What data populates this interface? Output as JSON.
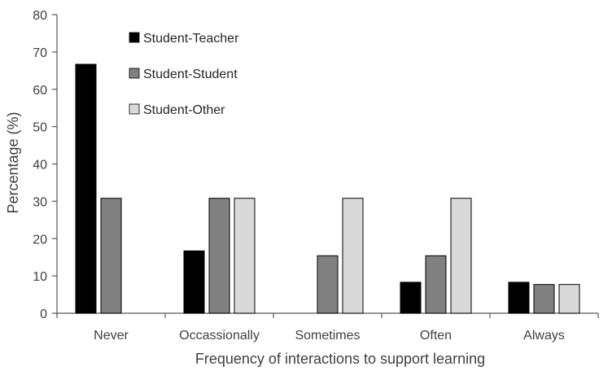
{
  "chart_data": {
    "type": "bar",
    "categories": [
      "Never",
      "Occassionally",
      "Sometimes",
      "Often",
      "Always"
    ],
    "series": [
      {
        "name": "Student-Teacher",
        "color": "#000000",
        "values": [
          66.7,
          16.7,
          0,
          8.3,
          8.3
        ]
      },
      {
        "name": "Student-Student",
        "color": "#808080",
        "values": [
          30.8,
          30.8,
          15.4,
          15.4,
          7.7
        ]
      },
      {
        "name": "Student-Other",
        "color": "#d9d9d9",
        "values": [
          0,
          30.8,
          30.8,
          30.8,
          7.7
        ]
      }
    ],
    "title": "",
    "xlabel": "Frequency of interactions to support learning",
    "ylabel": "Percentage (%)",
    "ylim": [
      0,
      80
    ],
    "yticks": [
      0,
      10,
      20,
      30,
      40,
      50,
      60,
      70,
      80
    ],
    "grid": false,
    "legend_position": "top-left"
  }
}
